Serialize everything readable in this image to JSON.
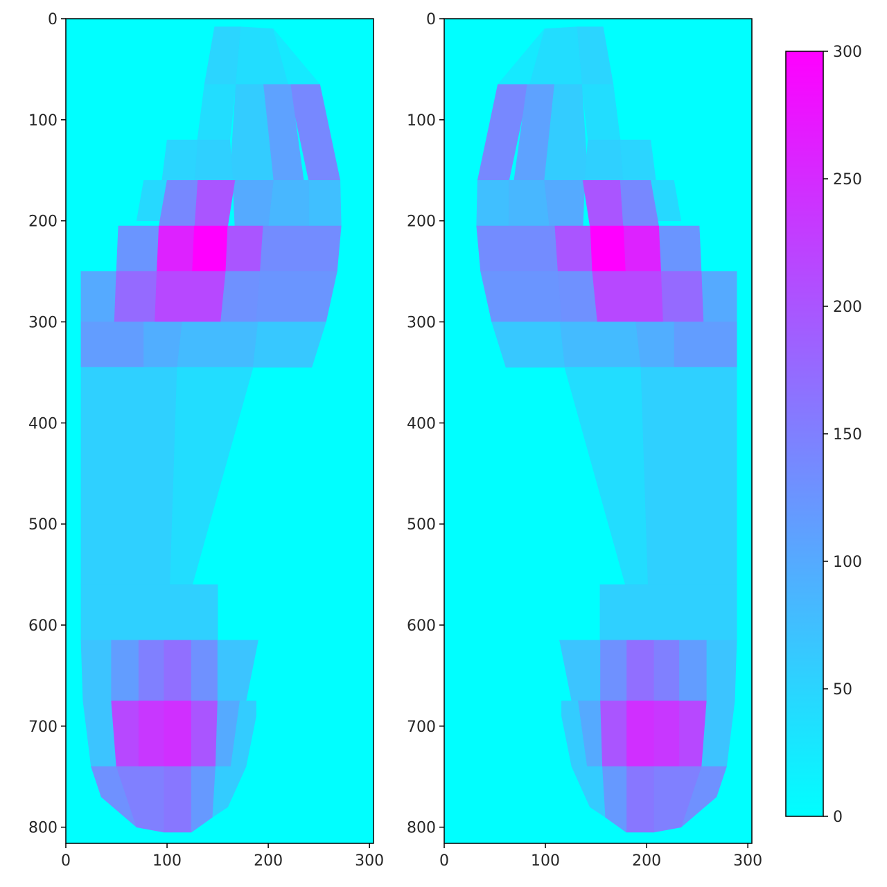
{
  "chart_data": [
    {
      "type": "heatmap",
      "title": "",
      "xlabel": "",
      "ylabel": "",
      "x_ticks": [
        0,
        100,
        200,
        300
      ],
      "y_ticks": [
        0,
        100,
        200,
        300,
        400,
        500,
        600,
        700,
        800
      ],
      "xlim": [
        0,
        304
      ],
      "ylim": [
        816,
        0
      ],
      "background_value": 0,
      "grid": false,
      "cells": [
        {
          "polygon": [
            [
              147,
              8
            ],
            [
              173,
              8
            ],
            [
              168,
              65
            ],
            [
              137,
              65
            ]
          ],
          "value": 50
        },
        {
          "polygon": [
            [
              173,
              8
            ],
            [
              205,
              10
            ],
            [
              220,
              65
            ],
            [
              168,
              65
            ]
          ],
          "value": 40
        },
        {
          "polygon": [
            [
              205,
              10
            ],
            [
              251,
              65
            ],
            [
              220,
              65
            ]
          ],
          "value": 25
        },
        {
          "polygon": [
            [
              137,
              65
            ],
            [
              168,
              65
            ],
            [
              162,
              120
            ],
            [
              130,
              120
            ]
          ],
          "value": 40
        },
        {
          "polygon": [
            [
              220,
              65
            ],
            [
              251,
              65
            ],
            [
              271,
              160
            ],
            [
              240,
              160
            ]
          ],
          "value": 140
        },
        {
          "polygon": [
            [
              195,
              65
            ],
            [
              222,
              65
            ],
            [
              235,
              160
            ],
            [
              205,
              160
            ]
          ],
          "value": 110
        },
        {
          "polygon": [
            [
              168,
              65
            ],
            [
              195,
              65
            ],
            [
              205,
              160
            ],
            [
              162,
              160
            ]
          ],
          "value": 60
        },
        {
          "polygon": [
            [
              130,
              120
            ],
            [
              162,
              120
            ],
            [
              165,
              160
            ],
            [
              127,
              160
            ]
          ],
          "value": 55
        },
        {
          "polygon": [
            [
              100,
              120
            ],
            [
              130,
              120
            ],
            [
              127,
              160
            ],
            [
              95,
              160
            ]
          ],
          "value": 50
        },
        {
          "polygon": [
            [
              77,
              160
            ],
            [
              127,
              160
            ],
            [
              125,
              200
            ],
            [
              70,
              200
            ]
          ],
          "value": 45
        },
        {
          "polygon": [
            [
              240,
              160
            ],
            [
              271,
              160
            ],
            [
              272,
              205
            ],
            [
              240,
              205
            ]
          ],
          "value": 75
        },
        {
          "polygon": [
            [
              205,
              160
            ],
            [
              240,
              160
            ],
            [
              240,
              205
            ],
            [
              200,
              205
            ]
          ],
          "value": 85
        },
        {
          "polygon": [
            [
              165,
              160
            ],
            [
              205,
              160
            ],
            [
              200,
              205
            ],
            [
              167,
              205
            ]
          ],
          "value": 100
        },
        {
          "polygon": [
            [
              130,
              160
            ],
            [
              167,
              160
            ],
            [
              160,
              205
            ],
            [
              127,
              205
            ]
          ],
          "value": 200
        },
        {
          "polygon": [
            [
              100,
              160
            ],
            [
              130,
              160
            ],
            [
              127,
              205
            ],
            [
              92,
              205
            ]
          ],
          "value": 140
        },
        {
          "polygon": [
            [
              52,
              205
            ],
            [
              92,
              205
            ],
            [
              90,
              250
            ],
            [
              50,
              250
            ]
          ],
          "value": 125
        },
        {
          "polygon": [
            [
              92,
              205
            ],
            [
              127,
              205
            ],
            [
              125,
              250
            ],
            [
              90,
              250
            ]
          ],
          "value": 260
        },
        {
          "polygon": [
            [
              127,
              205
            ],
            [
              160,
              205
            ],
            [
              158,
              250
            ],
            [
              125,
              250
            ]
          ],
          "value": 300
        },
        {
          "polygon": [
            [
              160,
              205
            ],
            [
              195,
              205
            ],
            [
              192,
              250
            ],
            [
              158,
              250
            ]
          ],
          "value": 200
        },
        {
          "polygon": [
            [
              195,
              205
            ],
            [
              272,
              205
            ],
            [
              268,
              250
            ],
            [
              192,
              250
            ]
          ],
          "value": 135
        },
        {
          "polygon": [
            [
              15,
              250
            ],
            [
              50,
              250
            ],
            [
              48,
              300
            ],
            [
              15,
              300
            ]
          ],
          "value": 100
        },
        {
          "polygon": [
            [
              50,
              250
            ],
            [
              90,
              250
            ],
            [
              88,
              300
            ],
            [
              48,
              300
            ]
          ],
          "value": 175
        },
        {
          "polygon": [
            [
              90,
              250
            ],
            [
              158,
              250
            ],
            [
              153,
              300
            ],
            [
              88,
              300
            ]
          ],
          "value": 215
        },
        {
          "polygon": [
            [
              158,
              250
            ],
            [
              192,
              250
            ],
            [
              188,
              300
            ],
            [
              153,
              300
            ]
          ],
          "value": 130
        },
        {
          "polygon": [
            [
              192,
              250
            ],
            [
              268,
              250
            ],
            [
              257,
              300
            ],
            [
              188,
              300
            ]
          ],
          "value": 125
        },
        {
          "polygon": [
            [
              15,
              300
            ],
            [
              77,
              300
            ],
            [
              77,
              345
            ],
            [
              15,
              345
            ]
          ],
          "value": 115
        },
        {
          "polygon": [
            [
              77,
              300
            ],
            [
              115,
              300
            ],
            [
              110,
              345
            ],
            [
              77,
              345
            ]
          ],
          "value": 95
        },
        {
          "polygon": [
            [
              115,
              300
            ],
            [
              190,
              300
            ],
            [
              185,
              345
            ],
            [
              110,
              345
            ]
          ],
          "value": 80
        },
        {
          "polygon": [
            [
              190,
              300
            ],
            [
              257,
              300
            ],
            [
              243,
              345
            ],
            [
              185,
              345
            ]
          ],
          "value": 65
        },
        {
          "polygon": [
            [
              15,
              345
            ],
            [
              110,
              345
            ],
            [
              103,
              560
            ],
            [
              15,
              560
            ]
          ],
          "value": 55
        },
        {
          "polygon": [
            [
              110,
              345
            ],
            [
              185,
              345
            ],
            [
              125,
              560
            ],
            [
              103,
              560
            ]
          ],
          "value": 40
        },
        {
          "polygon": [
            [
              15,
              560
            ],
            [
              125,
              560
            ],
            [
              150,
              560
            ],
            [
              150,
              615
            ],
            [
              15,
              615
            ]
          ],
          "value": 55
        },
        {
          "polygon": [
            [
              15,
              615
            ],
            [
              45,
              615
            ],
            [
              45,
              675
            ],
            [
              17,
              675
            ]
          ],
          "value": 70
        },
        {
          "polygon": [
            [
              45,
              615
            ],
            [
              72,
              615
            ],
            [
              72,
              675
            ],
            [
              45,
              675
            ]
          ],
          "value": 115
        },
        {
          "polygon": [
            [
              72,
              615
            ],
            [
              97,
              615
            ],
            [
              97,
              675
            ],
            [
              72,
              675
            ]
          ],
          "value": 150
        },
        {
          "polygon": [
            [
              97,
              615
            ],
            [
              124,
              615
            ],
            [
              124,
              675
            ],
            [
              97,
              675
            ]
          ],
          "value": 170
        },
        {
          "polygon": [
            [
              124,
              615
            ],
            [
              150,
              615
            ],
            [
              150,
              675
            ],
            [
              124,
              675
            ]
          ],
          "value": 130
        },
        {
          "polygon": [
            [
              150,
              615
            ],
            [
              190,
              615
            ],
            [
              178,
              675
            ],
            [
              150,
              675
            ]
          ],
          "value": 70
        },
        {
          "polygon": [
            [
              17,
              675
            ],
            [
              45,
              675
            ],
            [
              50,
              740
            ],
            [
              25,
              740
            ]
          ],
          "value": 70
        },
        {
          "polygon": [
            [
              45,
              675
            ],
            [
              72,
              675
            ],
            [
              72,
              740
            ],
            [
              50,
              740
            ]
          ],
          "value": 215
        },
        {
          "polygon": [
            [
              72,
              675
            ],
            [
              97,
              675
            ],
            [
              97,
              740
            ],
            [
              72,
              740
            ]
          ],
          "value": 235
        },
        {
          "polygon": [
            [
              97,
              675
            ],
            [
              124,
              675
            ],
            [
              124,
              740
            ],
            [
              97,
              740
            ]
          ],
          "value": 245
        },
        {
          "polygon": [
            [
              124,
              675
            ],
            [
              150,
              675
            ],
            [
              148,
              740
            ],
            [
              124,
              740
            ]
          ],
          "value": 200
        },
        {
          "polygon": [
            [
              150,
              675
            ],
            [
              172,
              675
            ],
            [
              163,
              740
            ],
            [
              148,
              740
            ]
          ],
          "value": 100
        },
        {
          "polygon": [
            [
              172,
              675
            ],
            [
              188,
              675
            ],
            [
              188,
              690
            ],
            [
              178,
              740
            ],
            [
              163,
              740
            ]
          ],
          "value": 60
        },
        {
          "polygon": [
            [
              25,
              740
            ],
            [
              50,
              740
            ],
            [
              70,
              800
            ],
            [
              35,
              770
            ]
          ],
          "value": 130
        },
        {
          "polygon": [
            [
              50,
              740
            ],
            [
              97,
              740
            ],
            [
              97,
              805
            ],
            [
              70,
              800
            ]
          ],
          "value": 150
        },
        {
          "polygon": [
            [
              97,
              740
            ],
            [
              124,
              740
            ],
            [
              124,
              805
            ],
            [
              97,
              805
            ]
          ],
          "value": 160
        },
        {
          "polygon": [
            [
              124,
              740
            ],
            [
              148,
              740
            ],
            [
              145,
              790
            ],
            [
              124,
              805
            ]
          ],
          "value": 120
        },
        {
          "polygon": [
            [
              148,
              740
            ],
            [
              178,
              740
            ],
            [
              160,
              780
            ],
            [
              145,
              790
            ]
          ],
          "value": 60
        }
      ]
    },
    {
      "type": "heatmap",
      "title": "",
      "xlabel": "",
      "ylabel": "",
      "x_ticks": [
        0,
        100,
        200,
        300
      ],
      "y_ticks": [
        0,
        100,
        200,
        300,
        400,
        500,
        600,
        700,
        800
      ],
      "xlim": [
        0,
        304
      ],
      "ylim": [
        816,
        0
      ],
      "background_value": 0,
      "mirror_of_first": true,
      "cells": []
    }
  ],
  "colorbar": {
    "ticks": [
      0,
      50,
      100,
      150,
      200,
      250,
      300
    ],
    "range": [
      0,
      300
    ],
    "colormap": "cool",
    "color_low": "#00ffff",
    "color_high": "#ff00ff"
  }
}
